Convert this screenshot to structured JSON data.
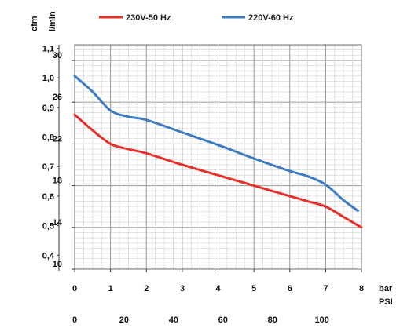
{
  "chart_data": {
    "type": "line",
    "title": "",
    "units": {
      "cfm": "cfm",
      "lmin": "l/min",
      "bar": "bar",
      "psi": "PSI"
    },
    "x_bar": {
      "range": [
        0,
        8
      ],
      "ticks": [
        "0",
        "1",
        "2",
        "3",
        "4",
        "5",
        "6",
        "7",
        "8"
      ]
    },
    "x_psi": {
      "range": [
        0,
        116
      ],
      "ticks": [
        {
          "value": 0,
          "label": "0"
        },
        {
          "value": 20,
          "label": "20"
        },
        {
          "value": 40,
          "label": "40"
        },
        {
          "value": 60,
          "label": "60"
        },
        {
          "value": 80,
          "label": "80"
        },
        {
          "value": 100,
          "label": "100"
        }
      ]
    },
    "y_lmin": {
      "range": [
        10,
        31.5
      ],
      "ticks": [
        {
          "value": 10,
          "label": "10"
        },
        {
          "value": 14,
          "label": "14"
        },
        {
          "value": 18,
          "label": "18"
        },
        {
          "value": 22,
          "label": "22"
        },
        {
          "value": 26,
          "label": "26"
        },
        {
          "value": 30,
          "label": "30"
        }
      ]
    },
    "y_cfm": {
      "range": [
        0.353,
        1.112
      ],
      "ticks": [
        {
          "value": 0.4,
          "label": "0,4"
        },
        {
          "value": 0.5,
          "label": "0,5"
        },
        {
          "value": 0.6,
          "label": "0,6"
        },
        {
          "value": 0.7,
          "label": "0,7"
        },
        {
          "value": 0.8,
          "label": "0,8"
        },
        {
          "value": 0.9,
          "label": "0,9"
        },
        {
          "value": 1.0,
          "label": "1,0"
        },
        {
          "value": 1.1,
          "label": "1,1"
        }
      ]
    },
    "grid": true,
    "legend_position": "top",
    "series": [
      {
        "name": "230V-50 Hz",
        "color": "#e8302a",
        "x": [
          0,
          0.5,
          1,
          1.5,
          2,
          3,
          4,
          5,
          6,
          6.5,
          7,
          7.5,
          8
        ],
        "y": [
          24.8,
          23.3,
          22.0,
          21.5,
          21.1,
          20.0,
          19.0,
          18.0,
          17.0,
          16.5,
          16.0,
          15.0,
          14.0
        ]
      },
      {
        "name": "220V-60 Hz",
        "color": "#3c7cbf",
        "x": [
          0,
          0.5,
          1,
          1.5,
          2,
          3,
          4,
          5,
          6,
          6.5,
          7,
          7.5,
          7.9
        ],
        "y": [
          28.5,
          27.0,
          25.2,
          24.6,
          24.3,
          23.1,
          21.9,
          20.6,
          19.4,
          18.9,
          18.1,
          16.6,
          15.6
        ]
      }
    ]
  }
}
